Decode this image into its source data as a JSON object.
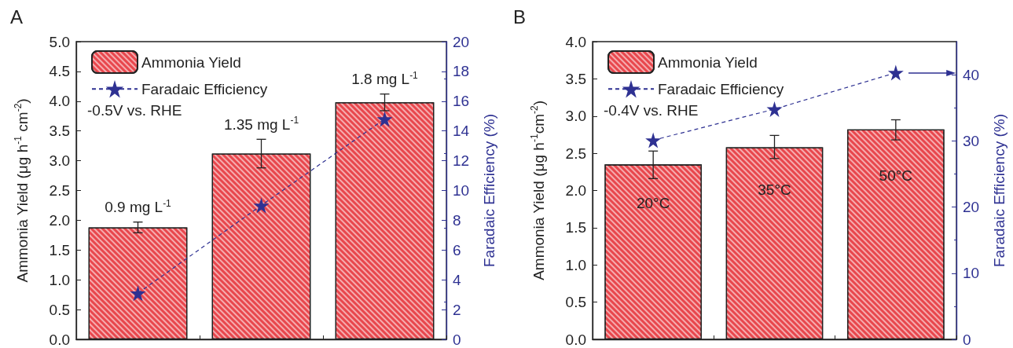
{
  "chart_data": [
    {
      "type": "bar",
      "title": "A",
      "categories": [
        null,
        null,
        null
      ],
      "ylabel": "Ammonia Yield (μg h$^{-1}$ cm$^{-2}$)",
      "y2label": "Faradaic Efficiency (%)",
      "series": [
        {
          "name": "Ammonia Yield",
          "color": "#e8474d",
          "values": [
            1.88,
            3.12,
            3.98
          ],
          "errors": [
            0.09,
            0.24,
            0.14
          ]
        },
        {
          "name": "Faradaic Efficiency",
          "type": "line",
          "axis": "y2",
          "color": "#2e3192",
          "values": [
            3.1,
            9.0,
            14.8
          ],
          "marker": "star",
          "line_style": "dashed"
        }
      ],
      "ylim": [
        0,
        5
      ],
      "yticks": [
        {
          "value": 0,
          "label": "0.0"
        },
        {
          "value": 0.5,
          "label": "0.5"
        },
        {
          "value": 1,
          "label": "1.0"
        },
        {
          "value": 1.5,
          "label": "1.5"
        },
        {
          "value": 2,
          "label": "2.0"
        },
        {
          "value": 2.5,
          "label": "2.5"
        },
        {
          "value": 3,
          "label": "3.0"
        },
        {
          "value": 3.5,
          "label": "3.5"
        },
        {
          "value": 4,
          "label": "4.0"
        },
        {
          "value": 4.5,
          "label": "4.5"
        },
        {
          "value": 5,
          "label": "5.0"
        }
      ],
      "y2lim": [
        0,
        20
      ],
      "y2ticks": [
        0,
        2,
        4,
        6,
        8,
        10,
        12,
        14,
        16,
        18,
        20
      ],
      "annotations": [
        "-0.5V vs. RHE",
        "0.9 mg L$^{-1}$",
        "1.35 mg L$^{-1}$",
        "1.8 mg L$^{-1}$"
      ],
      "legend": "top left",
      "grid": false
    },
    {
      "type": "bar",
      "title": "B",
      "categories": [
        null,
        null,
        null
      ],
      "ylabel": "Ammonia Yield (μg h$^{-1}$cm$^{-2}$)",
      "y2label": "Faradaic Efficiency (%)",
      "series": [
        {
          "name": "Ammonia Yield",
          "color": "#e8474d",
          "values": [
            2.35,
            2.58,
            2.82
          ],
          "errors": [
            [
              2.16,
              2.53
            ],
            [
              2.43,
              2.74
            ],
            [
              2.68,
              2.95
            ]
          ]
        },
        {
          "name": "Faradaic Efficiency",
          "type": "line",
          "axis": "y2",
          "color": "#2e3192",
          "values": [
            30.1,
            34.8,
            40.3
          ],
          "marker": "star",
          "line_style": "dashed"
        }
      ],
      "ylim": [
        0,
        4
      ],
      "yticks": [
        {
          "value": 0,
          "label": "0.0"
        },
        {
          "value": 0.5,
          "label": "0.5"
        },
        {
          "value": 1,
          "label": "1.0"
        },
        {
          "value": 1.5,
          "label": "1.5"
        },
        {
          "value": 2,
          "label": "2.0"
        },
        {
          "value": 2.5,
          "label": "2.5"
        },
        {
          "value": 3,
          "label": "3.0"
        },
        {
          "value": 3.5,
          "label": "3.5"
        },
        {
          "value": 4,
          "label": "4.0"
        }
      ],
      "y2lim": [
        0,
        45
      ],
      "y2ticks": [
        0,
        10,
        20,
        30,
        40
      ],
      "annotations": [
        "-0.4V vs. RHE",
        "20°C",
        "35°C",
        "50°C"
      ],
      "legend": "top left",
      "grid": false
    }
  ]
}
